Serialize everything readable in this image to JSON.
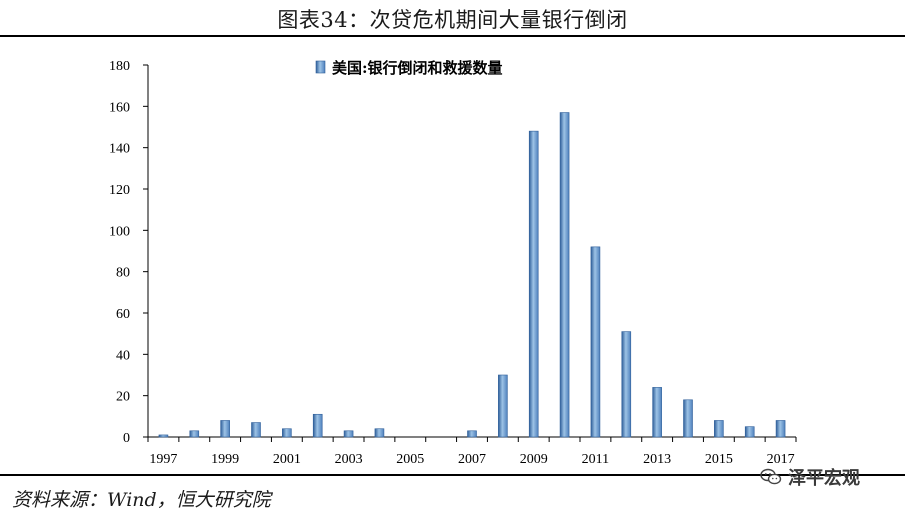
{
  "header": {
    "title": "图表34：次贷危机期间大量银行倒闭"
  },
  "footer": {
    "source": "资料来源：Wind，恒大研究院",
    "watermark": "泽平宏观",
    "watermark_icon": "wechat-icon"
  },
  "colors": {
    "bar": "#4f81bd",
    "bar_light": "#9dc3e6",
    "bar_dark": "#2f5f9a"
  },
  "chart_data": {
    "type": "bar",
    "title": "",
    "xlabel": "",
    "ylabel": "",
    "ylim": [
      0,
      180
    ],
    "yticks": [
      0,
      20,
      40,
      60,
      80,
      100,
      120,
      140,
      160,
      180
    ],
    "grid": false,
    "legend_position": "top",
    "categories": [
      "1997",
      "1998",
      "1999",
      "2000",
      "2001",
      "2002",
      "2003",
      "2004",
      "2005",
      "2006",
      "2007",
      "2008",
      "2009",
      "2010",
      "2011",
      "2012",
      "2013",
      "2014",
      "2015",
      "2016",
      "2017"
    ],
    "xtick_labels": [
      "1997",
      "1999",
      "2001",
      "2003",
      "2005",
      "2007",
      "2009",
      "2011",
      "2013",
      "2015",
      "2017"
    ],
    "series": [
      {
        "name": "美国:银行倒闭和救援数量",
        "values": [
          1,
          3,
          8,
          7,
          4,
          11,
          3,
          4,
          0,
          0,
          3,
          30,
          148,
          157,
          92,
          51,
          24,
          18,
          8,
          5,
          8
        ]
      }
    ]
  }
}
